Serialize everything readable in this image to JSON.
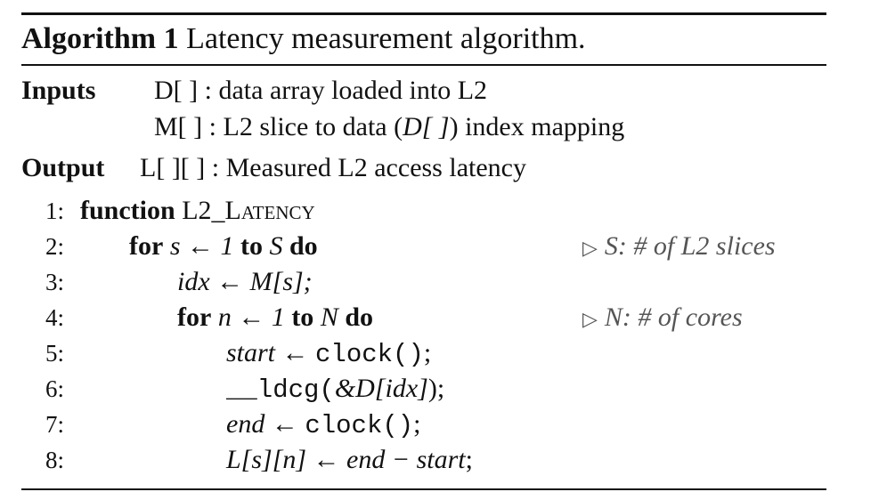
{
  "algorithm": {
    "number_label": "Algorithm 1",
    "caption": "Latency measurement algorithm.",
    "inputs_label": "Inputs",
    "inputs": [
      {
        "symbol": "D[ ]",
        "desc_pre": " : data array loaded into L2",
        "desc_var": "",
        "desc_post": ""
      },
      {
        "symbol": "M[ ]",
        "desc_pre": " : L2 slice to data (",
        "desc_var": "D[ ]",
        "desc_post": ") index mapping"
      }
    ],
    "output_label": "Output",
    "output": {
      "symbol": "L[ ][ ]",
      "desc": " : Measured L2 access latency"
    },
    "lines": [
      {
        "num": "1:",
        "kw1": "function",
        "text": "L2_Latency"
      },
      {
        "num": "2:",
        "kw1": "for",
        "var": "s ← 1",
        "kw2": "to",
        "var2": "S",
        "kw3": "do",
        "comment": "S: # of L2 slices"
      },
      {
        "num": "3:",
        "text": "idx ← M[s];"
      },
      {
        "num": "4:",
        "kw1": "for",
        "var": "n ← 1",
        "kw2": "to",
        "var2": "N",
        "kw3": "do",
        "comment": "N: # of cores"
      },
      {
        "num": "5:",
        "var": "start ←",
        "mono": "clock()",
        "tail": ";"
      },
      {
        "num": "6:",
        "mono": "__ldcg(",
        "var": "&D[idx]",
        "tail": ");"
      },
      {
        "num": "7:",
        "var": "end ←",
        "mono": "clock()",
        "tail": ";"
      },
      {
        "num": "8:",
        "var": "L[s][n] ← end − start",
        "tail": ";"
      }
    ],
    "comment_marker": "▷"
  }
}
